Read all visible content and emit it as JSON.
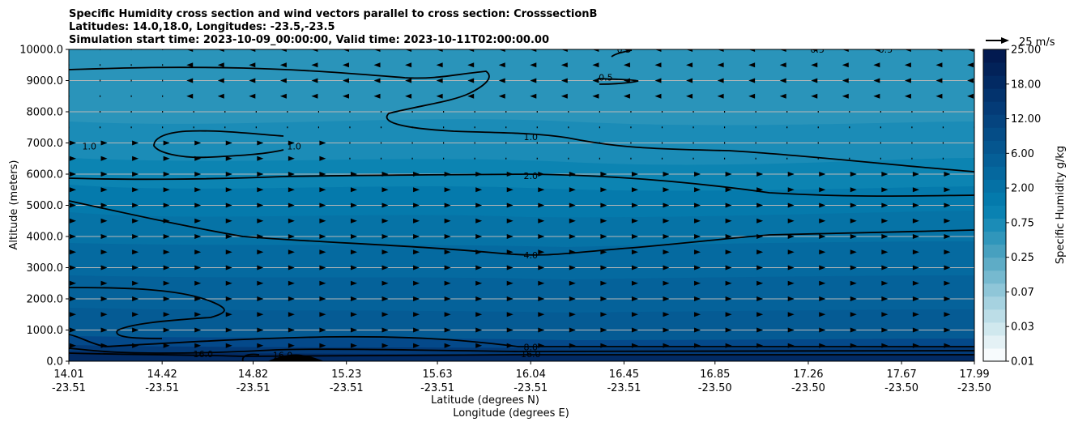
{
  "chart_data": {
    "type": "contour",
    "title": [
      "Specific Humidity cross section and wind vectors parallel to cross section: CrosssectionB",
      "Latitudes: 14.0,18.0, Longitudes: -23.5,-23.5",
      "Simulation start time: 2023-10-09_00:00:00, Valid time: 2023-10-11T02:00:00.00"
    ],
    "ylabel": "Altitude (meters)",
    "xlabel_lat": "Latitude (degrees N)",
    "xlabel_lon": "Longitude (degrees E)",
    "ylim": [
      0,
      10000
    ],
    "yticks": [
      "0.0",
      "1000.0",
      "2000.0",
      "3000.0",
      "4000.0",
      "5000.0",
      "6000.0",
      "7000.0",
      "8000.0",
      "9000.0",
      "10000.0"
    ],
    "xticks_lat": [
      "14.01",
      "14.42",
      "14.82",
      "15.23",
      "15.63",
      "16.04",
      "16.45",
      "16.85",
      "17.26",
      "17.67",
      "17.99"
    ],
    "xticks_lon": [
      "-23.51",
      "-23.51",
      "-23.51",
      "-23.51",
      "-23.51",
      "-23.51",
      "-23.51",
      "-23.50",
      "-23.50",
      "-23.50",
      "-23.50"
    ],
    "grid": "horizontal",
    "colorbar": {
      "label": "Specific Humidity g/kg",
      "tick_labels": [
        "0.01",
        "0.03",
        "0.07",
        "0.25",
        "0.75",
        "2.00",
        "6.00",
        "12.00",
        "18.00",
        "25.00"
      ],
      "colors": [
        "#f7fbfd",
        "#e4f1f5",
        "#d0e8ee",
        "#bcdde7",
        "#a6d2e0",
        "#8fc6d8",
        "#76b9cf",
        "#5eacc6",
        "#47a0bf",
        "#3096bb",
        "#1b8cb7",
        "#0a82b2",
        "#047aac",
        "#0571a5",
        "#05689e",
        "#055f97",
        "#05568f",
        "#054d87",
        "#05447f",
        "#043b77",
        "#03336d",
        "#022a63",
        "#022259",
        "#021a50"
      ]
    },
    "quiver_key": {
      "label": "25 m/s",
      "value": 25
    },
    "contour_labels": [
      {
        "text": "1.0",
        "lat": 14.1,
        "alt": 6900
      },
      {
        "text": "1.0",
        "lat": 15.0,
        "alt": 6900
      },
      {
        "text": "1.0",
        "lat": 16.04,
        "alt": 7200
      },
      {
        "text": "2.0",
        "lat": 16.04,
        "alt": 5950
      },
      {
        "text": "4.0",
        "lat": 16.04,
        "alt": 3400
      },
      {
        "text": "8.0",
        "lat": 16.04,
        "alt": 450
      },
      {
        "text": "16.0",
        "lat": 16.04,
        "alt": 230
      },
      {
        "text": "16.0",
        "lat": 14.6,
        "alt": 230
      },
      {
        "text": "16.0",
        "lat": 14.95,
        "alt": 200
      },
      {
        "text": "0.5",
        "lat": 16.45,
        "alt": 10000
      },
      {
        "text": "0.5",
        "lat": 17.3,
        "alt": 10000
      },
      {
        "text": "0.5",
        "lat": 17.6,
        "alt": 10000
      },
      {
        "text": "0.5",
        "lat": 16.37,
        "alt": 9100
      }
    ]
  }
}
